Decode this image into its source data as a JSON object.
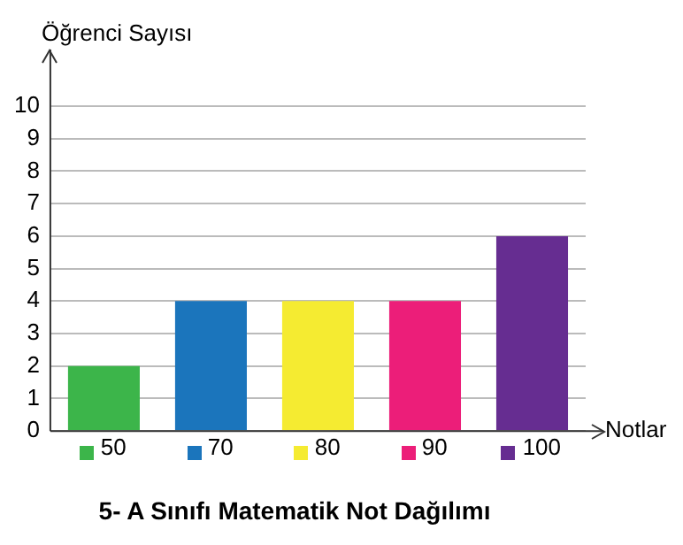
{
  "chart_data": {
    "type": "bar",
    "title": "5- A Sınıfı Matematik Not Dağılımı",
    "xlabel": "Notlar",
    "ylabel": "Öğrenci Sayısı",
    "categories": [
      "50",
      "70",
      "80",
      "90",
      "100"
    ],
    "values": [
      2,
      4,
      4,
      4,
      6
    ],
    "colors": [
      "#3cb54a",
      "#1b75bc",
      "#f5eb31",
      "#ec1e79",
      "#662d91"
    ],
    "ylim": [
      0,
      10
    ],
    "yticks": [
      0,
      1,
      2,
      3,
      4,
      5,
      6,
      7,
      8,
      9,
      10
    ],
    "grid": "y",
    "legend": false
  }
}
